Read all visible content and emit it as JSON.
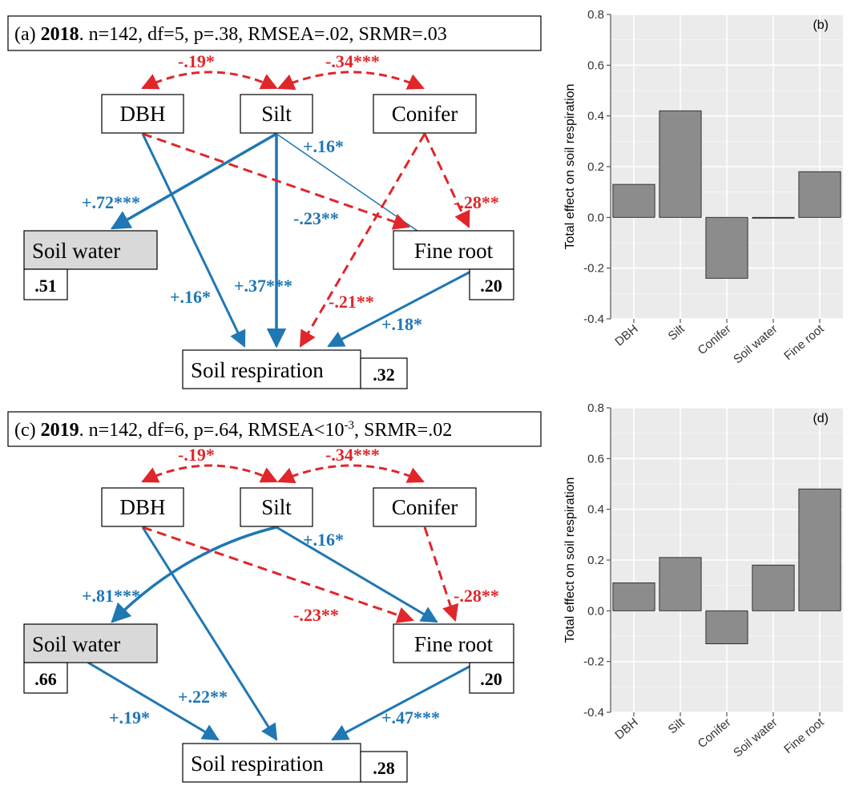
{
  "colors": {
    "positive": "#1f77b4",
    "negative": "#e0262a",
    "bar_fill": "#8c8c8c",
    "panel_bg": "#ebebeb",
    "box_gray": "#d9d9d9"
  },
  "panels": [
    {
      "id": "a",
      "label": "(a)",
      "year": "2018",
      "stats": ". n=142, df=5, p=.38, RMSEA=.02, SRMR=.03",
      "nodes": {
        "dbh": "DBH",
        "silt": "Silt",
        "conifer": "Conifer",
        "soil_water": "Soil water",
        "fine_root": "Fine root",
        "soil_resp": "Soil respiration"
      },
      "r2": {
        "soil_water": ".51",
        "fine_root": ".20",
        "soil_resp": ".32"
      },
      "paths": {
        "dbh_silt": "-.19*",
        "silt_conifer": "-.34***",
        "silt_soilwater": "+.72***",
        "dbh_soilresp": "+.16*",
        "silt_soilresp": "+.37***",
        "silt_fineroot": "+.16*",
        "dbh_fineroot": "-.23**",
        "conifer_fineroot": "-.28**",
        "conifer_soilresp": "-.21**",
        "fineroot_soilresp": "+.18*"
      }
    },
    {
      "id": "c",
      "label": "(c)",
      "year": "2019",
      "stats_pre": ". n=142, df=6, p=.64, RMSEA<10",
      "stats_sup": "-3",
      "stats_post": ", SRMR=.02",
      "nodes": {
        "dbh": "DBH",
        "silt": "Silt",
        "conifer": "Conifer",
        "soil_water": "Soil water",
        "fine_root": "Fine root",
        "soil_resp": "Soil respiration"
      },
      "r2": {
        "soil_water": ".66",
        "fine_root": ".20",
        "soil_resp": ".28"
      },
      "paths": {
        "dbh_silt": "-.19*",
        "silt_conifer": "-.34***",
        "silt_soilwater": "+.81***",
        "silt_fineroot": "+.16*",
        "dbh_fineroot": "-.23**",
        "conifer_fineroot": "-.28**",
        "dbh_soilresp": "+.22**",
        "soilwater_soilresp": "+.19*",
        "fineroot_soilresp": "+.47***"
      }
    }
  ],
  "chart_data": [
    {
      "type": "bar",
      "panel_label": "(b)",
      "categories": [
        "DBH",
        "Silt",
        "Conifer",
        "Soil water",
        "Fine root"
      ],
      "values": [
        0.13,
        0.42,
        -0.24,
        0.0,
        0.18
      ],
      "ylabel": "Total effect on soil respiration",
      "ylim": [
        -0.4,
        0.8
      ],
      "yticks": [
        "0.8",
        "0.6",
        "0.4",
        "0.2",
        "0.0",
        "-0.2",
        "-0.4"
      ],
      "grid": true
    },
    {
      "type": "bar",
      "panel_label": "(d)",
      "categories": [
        "DBH",
        "Silt",
        "Conifer",
        "Soil water",
        "Fine root"
      ],
      "values": [
        0.11,
        0.21,
        -0.13,
        0.18,
        0.48
      ],
      "ylabel": "Total effect on soil respiration",
      "ylim": [
        -0.4,
        0.8
      ],
      "yticks": [
        "0.8",
        "0.6",
        "0.4",
        "0.2",
        "0.0",
        "-0.2",
        "-0.4"
      ],
      "grid": true
    }
  ]
}
